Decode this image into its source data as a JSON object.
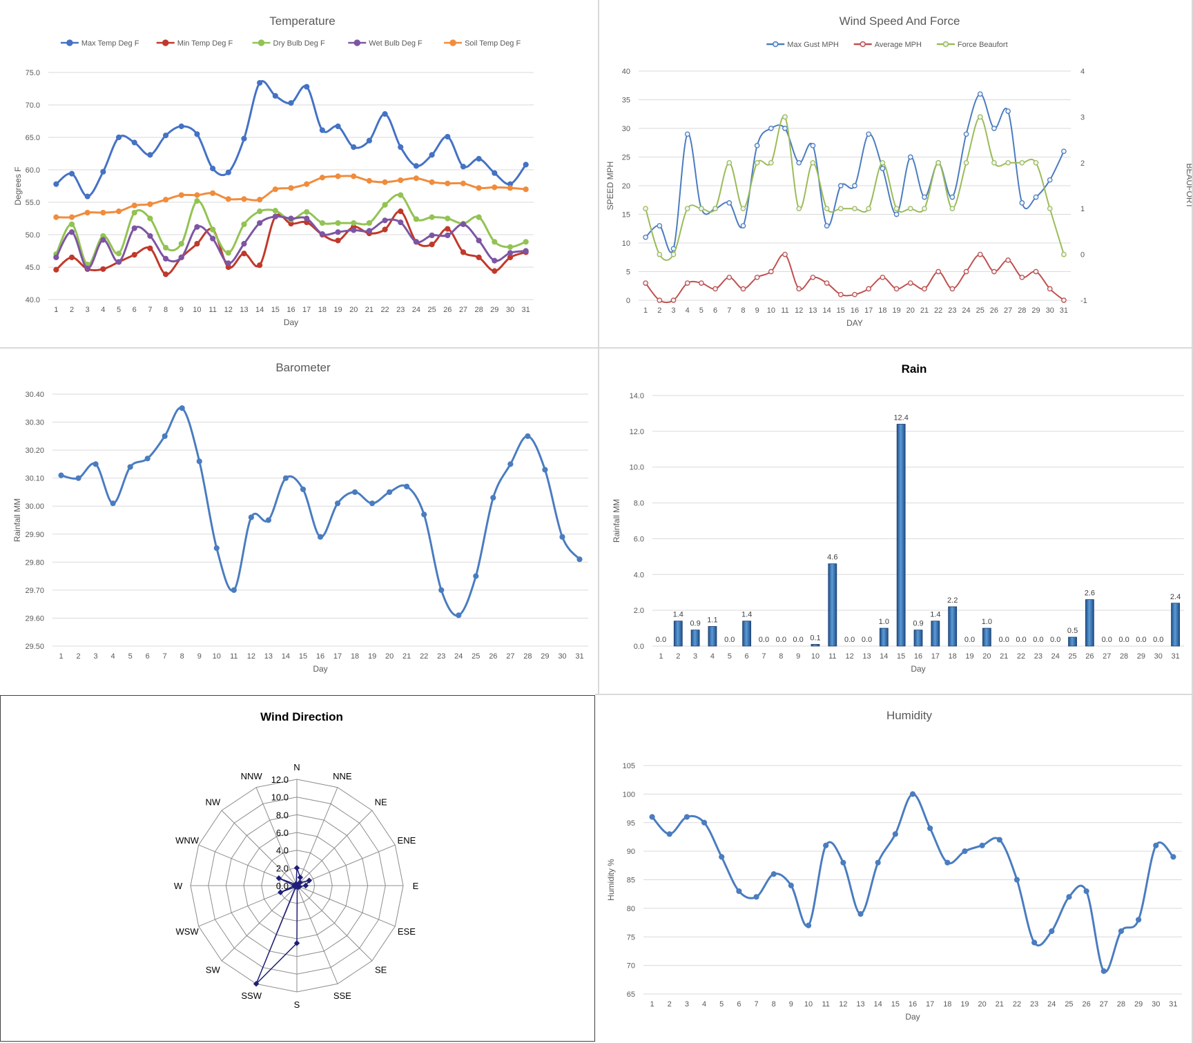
{
  "days": [
    1,
    2,
    3,
    4,
    5,
    6,
    7,
    8,
    9,
    10,
    11,
    12,
    13,
    14,
    15,
    16,
    17,
    18,
    19,
    20,
    21,
    22,
    23,
    24,
    25,
    26,
    27,
    28,
    29,
    30,
    31
  ],
  "chart_data": [
    {
      "id": "temperature",
      "type": "line",
      "title": "Temperature",
      "xlabel": "Day",
      "ylabel": "Degrees F",
      "ylim": [
        40,
        75
      ],
      "yticks": [
        "40.0",
        "45.0",
        "50.0",
        "55.0",
        "60.0",
        "65.0",
        "70.0",
        "75.0"
      ],
      "grid": true,
      "legend_position": "top",
      "series": [
        {
          "name": "Max Temp Deg F",
          "color": "#4472c4",
          "values": [
            57.8,
            59.4,
            55.9,
            59.7,
            65.0,
            64.2,
            62.3,
            65.3,
            66.7,
            65.5,
            60.2,
            59.6,
            64.8,
            73.4,
            71.4,
            70.3,
            72.8,
            66.1,
            66.7,
            63.5,
            64.5,
            68.6,
            63.5,
            60.6,
            62.3,
            65.1,
            60.5,
            61.7,
            59.5,
            57.8,
            60.8
          ]
        },
        {
          "name": "Min Temp Deg F",
          "color": "#c0392b",
          "values": [
            44.6,
            46.5,
            44.7,
            44.7,
            45.8,
            46.9,
            47.9,
            43.9,
            46.5,
            48.6,
            50.8,
            45.0,
            47.1,
            45.3,
            52.8,
            51.7,
            51.9,
            50.0,
            49.1,
            51.2,
            50.2,
            50.8,
            53.6,
            48.9,
            48.5,
            50.9,
            47.3,
            46.5,
            44.4,
            46.5,
            47.3
          ]
        },
        {
          "name": "Dry Bulb Deg F",
          "color": "#92c353",
          "values": [
            47.0,
            51.6,
            45.4,
            49.8,
            47.1,
            53.4,
            52.5,
            48.0,
            48.6,
            55.2,
            50.8,
            47.2,
            51.6,
            53.6,
            53.7,
            52.3,
            53.5,
            51.8,
            51.8,
            51.8,
            51.8,
            54.6,
            56.1,
            52.4,
            52.7,
            52.5,
            51.7,
            52.7,
            48.9,
            48.1,
            48.9
          ]
        },
        {
          "name": "Wet Bulb Deg F",
          "color": "#7d55a3",
          "values": [
            46.5,
            50.4,
            44.8,
            49.2,
            45.8,
            51.0,
            49.8,
            46.3,
            46.5,
            51.2,
            49.4,
            45.6,
            48.6,
            51.8,
            52.8,
            52.5,
            52.5,
            50.1,
            50.4,
            50.7,
            50.6,
            52.2,
            51.9,
            48.9,
            49.9,
            49.9,
            51.6,
            49.1,
            46.0,
            47.2,
            47.5
          ]
        },
        {
          "name": "Soil Temp Deg F",
          "color": "#f08c3c",
          "values": [
            52.7,
            52.7,
            53.4,
            53.4,
            53.6,
            54.5,
            54.7,
            55.4,
            56.1,
            56.1,
            56.4,
            55.5,
            55.5,
            55.4,
            57.0,
            57.2,
            57.8,
            58.8,
            59.0,
            59.0,
            58.3,
            58.1,
            58.4,
            58.7,
            58.1,
            57.9,
            57.9,
            57.2,
            57.3,
            57.2,
            57.0
          ]
        }
      ]
    },
    {
      "id": "wind",
      "type": "line",
      "title": "Wind Speed And Force",
      "xlabel": "DAY",
      "ylabel": "SPEED MPH",
      "y2label": "BEAUFORT",
      "ylim": [
        0,
        40
      ],
      "y2lim": [
        -1,
        4
      ],
      "yticks": [
        "0",
        "5",
        "10",
        "15",
        "20",
        "25",
        "30",
        "35",
        "40"
      ],
      "y2ticks": [
        "-1",
        "0",
        "1",
        "2",
        "3",
        "4"
      ],
      "grid": true,
      "legend_position": "top",
      "series": [
        {
          "name": "Max Gust MPH",
          "color": "#4a7cc0",
          "axis": "left",
          "values": [
            11,
            13,
            9,
            29,
            16,
            16,
            17,
            13,
            27,
            30,
            30,
            24,
            27,
            13,
            20,
            20,
            29,
            23,
            15,
            25,
            18,
            24,
            18,
            29,
            36,
            30,
            33,
            17,
            18,
            21,
            26
          ]
        },
        {
          "name": "Average MPH",
          "color": "#c0504d",
          "axis": "left",
          "values": [
            3,
            0,
            0,
            3,
            3,
            2,
            4,
            2,
            4,
            5,
            8,
            2,
            4,
            3,
            1,
            1,
            2,
            4,
            2,
            3,
            2,
            5,
            2,
            5,
            8,
            5,
            7,
            4,
            5,
            2,
            0
          ]
        },
        {
          "name": "Force Beaufort",
          "color": "#9bbb59",
          "axis": "right",
          "values": [
            1,
            0,
            0,
            1,
            1,
            1,
            2,
            1,
            2,
            2,
            3,
            1,
            2,
            1,
            1,
            1,
            1,
            2,
            1,
            1,
            1,
            2,
            1,
            2,
            3,
            2,
            2,
            2,
            2,
            1,
            0
          ]
        }
      ]
    },
    {
      "id": "barometer",
      "type": "line",
      "title": "Barometer",
      "xlabel": "Day",
      "ylabel": "Rainfall MM",
      "ylim": [
        29.5,
        30.4
      ],
      "yticks": [
        "29.50",
        "29.60",
        "29.70",
        "29.80",
        "29.90",
        "30.00",
        "30.10",
        "30.20",
        "30.30",
        "30.40"
      ],
      "grid": true,
      "series": [
        {
          "color": "#4a7cc0",
          "values": [
            30.11,
            30.1,
            30.15,
            30.01,
            30.14,
            30.17,
            30.25,
            30.35,
            30.16,
            29.85,
            29.7,
            29.96,
            29.95,
            30.1,
            30.06,
            29.89,
            30.01,
            30.05,
            30.01,
            30.05,
            30.07,
            29.97,
            29.7,
            29.61,
            29.75,
            30.03,
            30.15,
            30.25,
            30.13,
            29.89,
            29.81
          ]
        }
      ]
    },
    {
      "id": "rain",
      "type": "bar",
      "title": "Rain",
      "xlabel": "Day",
      "ylabel": "Rainfall MM",
      "ylim": [
        0,
        14
      ],
      "yticks": [
        "0.0",
        "2.0",
        "4.0",
        "6.0",
        "8.0",
        "10.0",
        "12.0",
        "14.0"
      ],
      "grid": true,
      "series": [
        {
          "color": "#2e75b6",
          "values": [
            0.0,
            1.4,
            0.9,
            1.1,
            0.0,
            1.4,
            0.0,
            0.0,
            0.0,
            0.1,
            4.6,
            0.0,
            0.0,
            1.0,
            12.4,
            0.9,
            1.4,
            2.2,
            0.0,
            1.0,
            0.0,
            0.0,
            0.0,
            0.0,
            0.5,
            2.6,
            0.0,
            0.0,
            0.0,
            0.0,
            2.4
          ]
        }
      ],
      "data_labels": [
        "0.0",
        "1.4",
        "0.9",
        "1.1",
        "0.0",
        "1.4",
        "0.0",
        "0.0",
        "0.0",
        "0.1",
        "4.6",
        "0.0",
        "0.0",
        "1.0",
        "12.4",
        "0.9",
        "1.4",
        "2.2",
        "0.0",
        "1.0",
        "0.0",
        "0.0",
        "0.0",
        "0.0",
        "0.5",
        "2.6",
        "0.0",
        "0.0",
        "0.0",
        "0.0",
        "2.4"
      ]
    },
    {
      "id": "wind_direction",
      "type": "radar",
      "title": "Wind Direction",
      "categories": [
        "N",
        "NNE",
        "NE",
        "ENE",
        "E",
        "ESE",
        "SE",
        "SSE",
        "S",
        "SSW",
        "SW",
        "WSW",
        "W",
        "WNW",
        "NW",
        "NNW"
      ],
      "rlim": [
        0,
        12
      ],
      "rticks": [
        "0.0",
        "2.0",
        "4.0",
        "6.0",
        "8.0",
        "10.0",
        "12.0"
      ],
      "series": [
        {
          "color": "#1f1f7a",
          "values": [
            2.0,
            1.0,
            0.5,
            1.5,
            1.0,
            0.3,
            0.2,
            0.1,
            6.5,
            12.0,
            0.2,
            2.0,
            0.3,
            2.2,
            0.2,
            0.2
          ]
        }
      ]
    },
    {
      "id": "humidity",
      "type": "line",
      "title": "Humidity",
      "xlabel": "Day",
      "ylabel": "Humidity  %",
      "ylim": [
        65,
        105
      ],
      "yticks": [
        "65",
        "70",
        "75",
        "80",
        "85",
        "90",
        "95",
        "100",
        "105"
      ],
      "grid": true,
      "series": [
        {
          "color": "#4a7cc0",
          "values": [
            96,
            93,
            96,
            95,
            89,
            83,
            82,
            86,
            84,
            77,
            91,
            88,
            79,
            88,
            93,
            100,
            94,
            88,
            90,
            91,
            92,
            85,
            74,
            76,
            82,
            83,
            69,
            76,
            78,
            91,
            89
          ]
        }
      ]
    }
  ]
}
